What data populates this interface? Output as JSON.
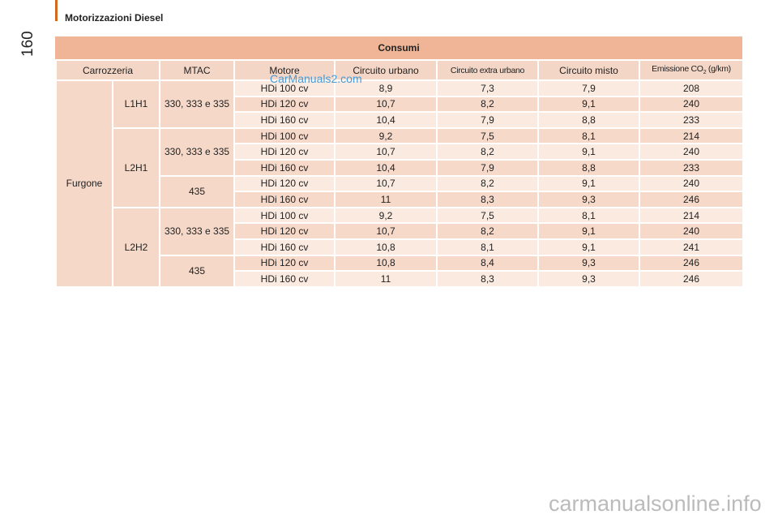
{
  "header": {
    "page_number": "160",
    "title": "Motorizzazioni Diesel"
  },
  "table": {
    "title": "Consumi",
    "columns": [
      "Carrozzeria",
      "MTAC",
      "Motore",
      "Circuito urbano",
      "Circuito extra urbano",
      "Circuito misto",
      {
        "text": "Emissione CO",
        "sub": "2",
        "suffix": " (g/km)"
      }
    ],
    "body": {
      "carrozzeria": "Furgone",
      "versions": [
        {
          "name": "L1H1",
          "mtac": [
            {
              "label": "330, 333 e 335",
              "rows": [
                [
                  "HDi 100 cv",
                  "8,9",
                  "7,3",
                  "7,9",
                  "208"
                ],
                [
                  "HDi 120 cv",
                  "10,7",
                  "8,2",
                  "9,1",
                  "240"
                ],
                [
                  "HDi 160 cv",
                  "10,4",
                  "7,9",
                  "8,8",
                  "233"
                ]
              ]
            }
          ]
        },
        {
          "name": "L2H1",
          "mtac": [
            {
              "label": "330, 333 e 335",
              "rows": [
                [
                  "HDi 100 cv",
                  "9,2",
                  "7,5",
                  "8,1",
                  "214"
                ],
                [
                  "HDi 120 cv",
                  "10,7",
                  "8,2",
                  "9,1",
                  "240"
                ],
                [
                  "HDi 160 cv",
                  "10,4",
                  "7,9",
                  "8,8",
                  "233"
                ]
              ]
            },
            {
              "label": "435",
              "rows": [
                [
                  "HDi 120 cv",
                  "10,7",
                  "8,2",
                  "9,1",
                  "240"
                ],
                [
                  "HDi 160 cv",
                  "11",
                  "8,3",
                  "9,3",
                  "246"
                ]
              ]
            }
          ]
        },
        {
          "name": "L2H2",
          "mtac": [
            {
              "label": "330, 333 e 335",
              "rows": [
                [
                  "HDi 100 cv",
                  "9,2",
                  "7,5",
                  "8,1",
                  "214"
                ],
                [
                  "HDi 120 cv",
                  "10,7",
                  "8,2",
                  "9,1",
                  "240"
                ],
                [
                  "HDi 160 cv",
                  "10,8",
                  "8,1",
                  "9,1",
                  "241"
                ]
              ]
            },
            {
              "label": "435",
              "rows": [
                [
                  "HDi 120 cv",
                  "10,8",
                  "8,4",
                  "9,3",
                  "246"
                ],
                [
                  "HDi 160 cv",
                  "11",
                  "8,3",
                  "9,3",
                  "246"
                ]
              ]
            }
          ]
        }
      ]
    }
  },
  "watermarks": [
    "CarManuals2.com",
    "carmanualsonline.info"
  ]
}
